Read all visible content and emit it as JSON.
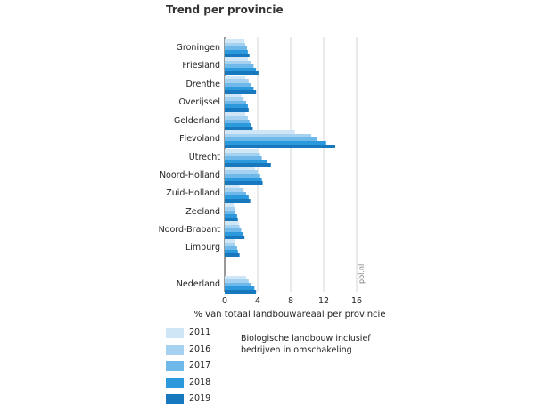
{
  "chart_data": {
    "type": "bar",
    "orientation": "horizontal",
    "title": "Trend per provincie",
    "xlabel": "% van totaal landbouwareaal per provincie",
    "ylabel": "",
    "xlim": [
      0,
      16
    ],
    "x_ticks": [
      0,
      4,
      8,
      12,
      16
    ],
    "grid": "vertical",
    "source_label": "pbl.nl",
    "note": "Biologische landbouw inclusief bedrijven in omschakeling",
    "categories": [
      "Groningen",
      "Friesland",
      "Drenthe",
      "Overijssel",
      "Gelderland",
      "Flevoland",
      "Utrecht",
      "Noord-Holland",
      "Zuid-Holland",
      "Zeeland",
      "Noord-Brabant",
      "Limburg",
      "Nederland"
    ],
    "series": [
      {
        "name": "2011",
        "color": "#cfe6f7",
        "values": [
          2.4,
          2.8,
          2.5,
          2.0,
          2.5,
          8.5,
          4.0,
          3.7,
          1.8,
          1.1,
          1.7,
          1.2,
          2.6
        ]
      },
      {
        "name": "2016",
        "color": "#a6d2f1",
        "values": [
          2.5,
          3.2,
          2.9,
          2.3,
          2.8,
          10.5,
          4.3,
          4.0,
          2.3,
          1.2,
          1.8,
          1.3,
          2.9
        ]
      },
      {
        "name": "2017",
        "color": "#6fb9ea",
        "values": [
          2.7,
          3.5,
          3.2,
          2.6,
          3.0,
          11.2,
          4.5,
          4.3,
          2.6,
          1.3,
          2.0,
          1.5,
          3.2
        ]
      },
      {
        "name": "2018",
        "color": "#2b99dc",
        "values": [
          2.8,
          3.8,
          3.5,
          2.8,
          3.2,
          12.3,
          5.1,
          4.5,
          2.9,
          1.5,
          2.2,
          1.6,
          3.6
        ]
      },
      {
        "name": "2019",
        "color": "#1778bd",
        "values": [
          3.0,
          4.1,
          3.8,
          2.9,
          3.4,
          13.4,
          5.6,
          4.6,
          3.1,
          1.6,
          2.4,
          1.8,
          3.8
        ]
      }
    ]
  }
}
